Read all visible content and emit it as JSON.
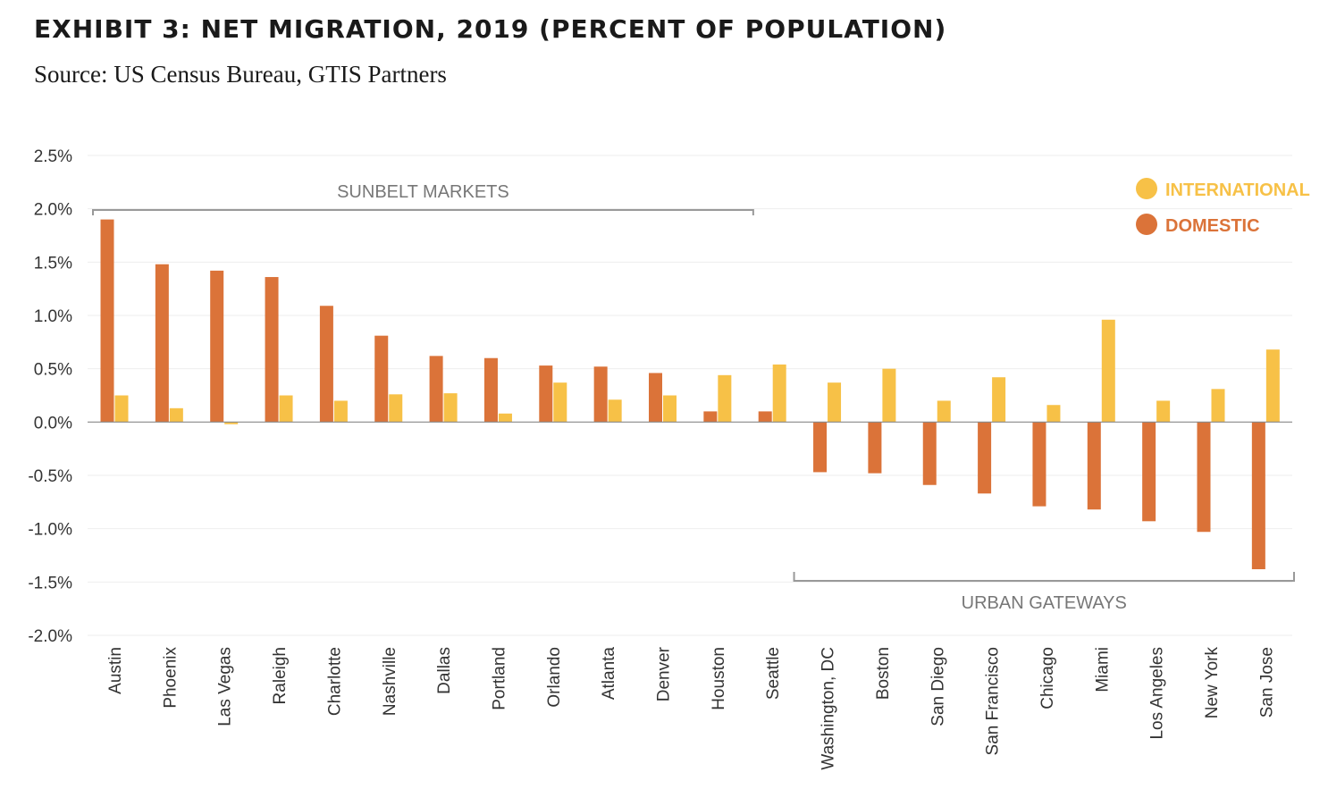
{
  "title": "EXHIBIT 3: NET MIGRATION, 2019 (PERCENT OF POPULATION)",
  "subtitle": "Source: US Census Bureau, GTIS Partners",
  "colors": {
    "domestic": "#db7339",
    "international": "#f7c147",
    "grid": "#eeeeee",
    "axis": "#888888",
    "bracket": "#999999"
  },
  "chart_data": {
    "type": "bar",
    "categories": [
      "Austin",
      "Phoenix",
      "Las Vegas",
      "Raleigh",
      "Charlotte",
      "Nashville",
      "Dallas",
      "Portland",
      "Orlando",
      "Atlanta",
      "Denver",
      "Houston",
      "Seattle",
      "Washington, DC",
      "Boston",
      "San Diego",
      "San Francisco",
      "Chicago",
      "Miami",
      "Los Angeles",
      "New York",
      "San Jose"
    ],
    "series": [
      {
        "name": "DOMESTIC",
        "values": [
          1.9,
          1.48,
          1.42,
          1.36,
          1.09,
          0.81,
          0.62,
          0.6,
          0.53,
          0.52,
          0.46,
          0.1,
          0.1,
          -0.47,
          -0.48,
          -0.59,
          -0.67,
          -0.79,
          -0.82,
          -0.93,
          -1.03,
          -1.38
        ]
      },
      {
        "name": "INTERNATIONAL",
        "values": [
          0.25,
          0.13,
          -0.02,
          0.25,
          0.2,
          0.26,
          0.27,
          0.08,
          0.37,
          0.21,
          0.25,
          0.44,
          0.54,
          0.37,
          0.5,
          0.2,
          0.42,
          0.16,
          0.96,
          0.2,
          0.31,
          0.68
        ]
      }
    ],
    "y_ticks": [
      "2.5%",
      "2.0%",
      "1.5%",
      "1.0%",
      "0.5%",
      "0.0%",
      "-0.5%",
      "-1.0%",
      "-1.5%",
      "-2.0%"
    ],
    "ylim": [
      -2.0,
      2.5
    ],
    "legend": {
      "position": "top-right",
      "items": [
        "INTERNATIONAL",
        "DOMESTIC"
      ]
    },
    "annotations": [
      {
        "text": "SUNBELT MARKETS",
        "from": "Austin",
        "to": "Houston"
      },
      {
        "text": "URBAN GATEWAYS",
        "from": "Washington, DC",
        "to": "San Jose"
      }
    ],
    "grid": true
  }
}
